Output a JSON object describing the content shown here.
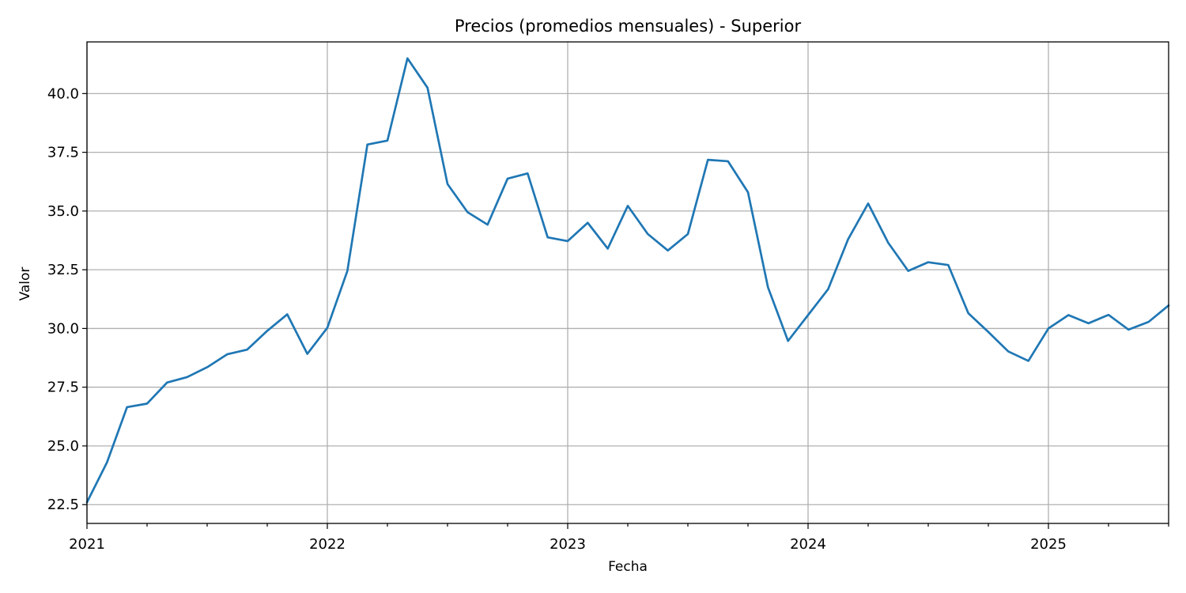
{
  "chart_data": {
    "type": "line",
    "title": "Precios (promedios mensuales) - Superior",
    "xlabel": "Fecha",
    "ylabel": "Valor",
    "grid": true,
    "x_tick_labels": [
      "2021",
      "2022",
      "2023",
      "2024",
      "2025"
    ],
    "x_range": [
      "2021-01",
      "2025-07"
    ],
    "ylim": [
      21.7,
      42.2
    ],
    "y_ticks": [
      22.5,
      25.0,
      27.5,
      30.0,
      32.5,
      35.0,
      37.5,
      40.0
    ],
    "y_tick_labels": [
      "22.5",
      "25.0",
      "27.5",
      "30.0",
      "32.5",
      "35.0",
      "37.5",
      "40.0"
    ],
    "line_color": "#1f77b4",
    "x": [
      "2021-01",
      "2021-02",
      "2021-03",
      "2021-04",
      "2021-05",
      "2021-06",
      "2021-07",
      "2021-08",
      "2021-09",
      "2021-10",
      "2021-11",
      "2021-12",
      "2022-01",
      "2022-02",
      "2022-03",
      "2022-04",
      "2022-05",
      "2022-06",
      "2022-07",
      "2022-08",
      "2022-09",
      "2022-10",
      "2022-11",
      "2022-12",
      "2023-01",
      "2023-02",
      "2023-03",
      "2023-04",
      "2023-05",
      "2023-06",
      "2023-07",
      "2023-08",
      "2023-09",
      "2023-10",
      "2023-11",
      "2023-12",
      "2024-01",
      "2024-02",
      "2024-03",
      "2024-04",
      "2024-05",
      "2024-06",
      "2024-07",
      "2024-08",
      "2024-09",
      "2024-10",
      "2024-11",
      "2024-12",
      "2025-01",
      "2025-02",
      "2025-03",
      "2025-04",
      "2025-05",
      "2025-06",
      "2025-07"
    ],
    "values": [
      22.6,
      24.3,
      26.65,
      26.8,
      27.7,
      27.93,
      28.35,
      28.9,
      29.1,
      29.9,
      30.6,
      28.92,
      30.03,
      32.45,
      37.83,
      38.0,
      41.5,
      40.25,
      36.15,
      34.95,
      34.42,
      36.38,
      36.6,
      33.88,
      33.72,
      34.5,
      33.4,
      35.22,
      34.02,
      33.32,
      34.02,
      37.18,
      37.12,
      35.8,
      31.75,
      29.47,
      30.57,
      31.67,
      33.8,
      35.32,
      33.65,
      32.45,
      32.82,
      32.7,
      30.65,
      29.85,
      29.02,
      28.62,
      30.0,
      30.57,
      30.22,
      30.58,
      29.95,
      30.28,
      30.98
    ]
  }
}
